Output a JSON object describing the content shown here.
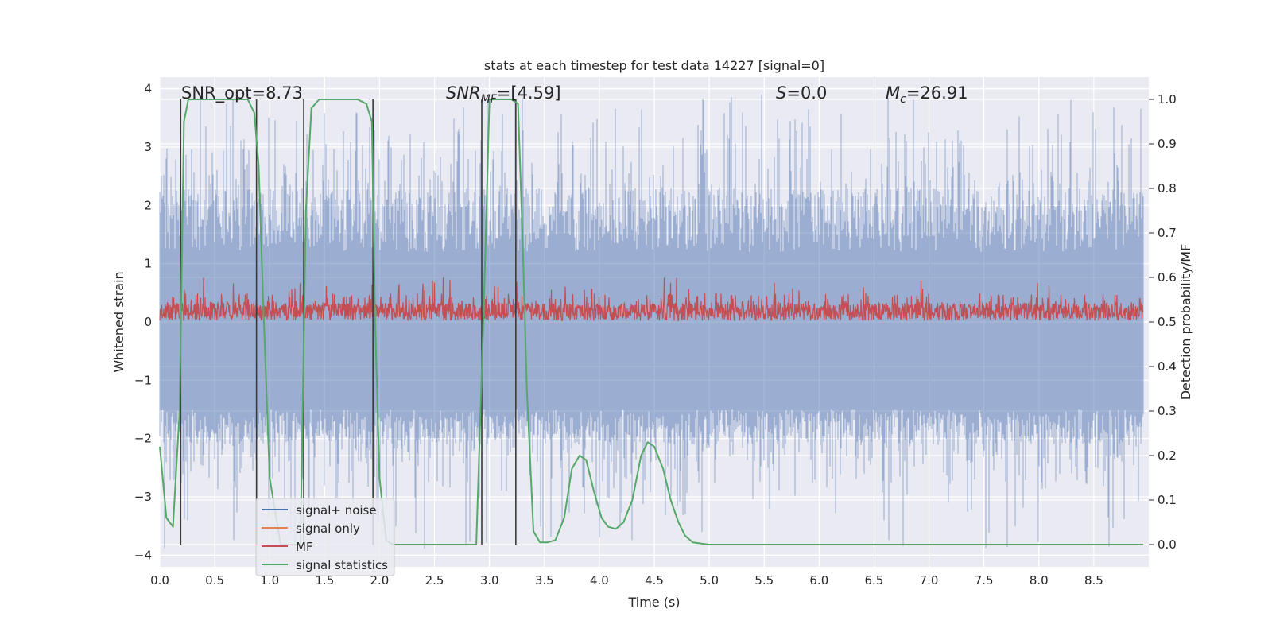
{
  "chart_data": {
    "type": "line",
    "title": "stats at each timestep for test data 14227 [signal=0]",
    "xlabel": "Time (s)",
    "ylabel": "Whitened strain",
    "y2label": "Detection probability/MF",
    "xlim": [
      0,
      9.0
    ],
    "ylim": [
      -4.2,
      4.2
    ],
    "y2lim": [
      -0.05,
      1.05
    ],
    "xticks": [
      0.0,
      0.5,
      1.0,
      1.5,
      2.0,
      2.5,
      3.0,
      3.5,
      4.0,
      4.5,
      5.0,
      5.5,
      6.0,
      6.5,
      7.0,
      7.5,
      8.0,
      8.5
    ],
    "xtick_labels": [
      "0.0",
      "0.5",
      "1.0",
      "1.5",
      "2.0",
      "2.5",
      "3.0",
      "3.5",
      "4.0",
      "4.5",
      "5.0",
      "5.5",
      "6.0",
      "6.5",
      "7.0",
      "7.5",
      "8.0",
      "8.5"
    ],
    "yticks": [
      -4,
      -3,
      -2,
      -1,
      0,
      1,
      2,
      3,
      4
    ],
    "ytick_labels": [
      "−4",
      "−3",
      "−2",
      "−1",
      "0",
      "1",
      "2",
      "3",
      "4"
    ],
    "y2ticks": [
      0.0,
      0.1,
      0.2,
      0.3,
      0.4,
      0.5,
      0.6,
      0.7,
      0.8,
      0.9,
      1.0
    ],
    "y2tick_labels": [
      "0.0",
      "0.1",
      "0.2",
      "0.3",
      "0.4",
      "0.5",
      "0.6",
      "0.7",
      "0.8",
      "0.9",
      "1.0"
    ],
    "grid": true,
    "legend_position": "lower-left",
    "annotations": {
      "snr_opt": "SNR_opt=8.73",
      "snr_mf_main": "SNR",
      "snr_mf_sub": "MF",
      "snr_mf_value": "=[4.59]",
      "s_main": "S",
      "s_value": "=0.0",
      "mc_main": "M",
      "mc_sub": "c",
      "mc_value": "=26.91"
    },
    "series": [
      {
        "name": "signal+ noise",
        "axis": "left",
        "color": "#4C72B0",
        "style": "noise band, whitened strain within approx ±4",
        "approx_range": [
          -3.9,
          3.9
        ]
      },
      {
        "name": "signal only",
        "axis": "left",
        "color": "#DD8452",
        "values": []
      },
      {
        "name": "MF",
        "axis": "right",
        "color": "#C44E52",
        "style": "matched-filter output, approx 0.5 to 0.57 with peaks near 0.6",
        "approx_range": [
          0.5,
          0.6
        ]
      },
      {
        "name": "signal statistics",
        "axis": "right",
        "color": "#55A868",
        "x": [
          0.0,
          0.06,
          0.12,
          0.18,
          0.22,
          0.26,
          0.33,
          0.4,
          0.5,
          0.6,
          0.7,
          0.8,
          0.86,
          0.9,
          0.94,
          1.0,
          1.1,
          1.2,
          1.28,
          1.33,
          1.38,
          1.45,
          1.6,
          1.8,
          1.88,
          1.93,
          1.96,
          2.0,
          2.06,
          2.12,
          2.3,
          2.6,
          2.88,
          2.95,
          3.0,
          3.1,
          3.2,
          3.26,
          3.3,
          3.34,
          3.4,
          3.46,
          3.53,
          3.6,
          3.68,
          3.75,
          3.82,
          3.88,
          3.95,
          4.02,
          4.08,
          4.15,
          4.22,
          4.3,
          4.38,
          4.44,
          4.5,
          4.58,
          4.65,
          4.72,
          4.78,
          4.85,
          5.0,
          6.0,
          7.0,
          8.0,
          8.95
        ],
        "y": [
          0.22,
          0.06,
          0.04,
          0.3,
          0.95,
          1.0,
          1.0,
          1.0,
          1.0,
          1.0,
          1.0,
          1.0,
          0.97,
          0.85,
          0.55,
          0.15,
          0.0,
          0.0,
          0.0,
          0.75,
          0.98,
          1.0,
          1.0,
          1.0,
          0.99,
          0.95,
          0.5,
          0.15,
          0.01,
          0.0,
          0.0,
          0.0,
          0.0,
          0.55,
          1.0,
          1.0,
          1.0,
          0.99,
          0.7,
          0.35,
          0.03,
          0.005,
          0.005,
          0.01,
          0.06,
          0.17,
          0.2,
          0.19,
          0.12,
          0.06,
          0.04,
          0.035,
          0.05,
          0.1,
          0.2,
          0.23,
          0.22,
          0.17,
          0.1,
          0.05,
          0.02,
          0.005,
          0.0,
          0.0,
          0.0,
          0.0,
          0.0
        ]
      }
    ],
    "vertical_markers": [
      0.19,
      0.88,
      1.31,
      1.94,
      2.93,
      3.24
    ]
  }
}
